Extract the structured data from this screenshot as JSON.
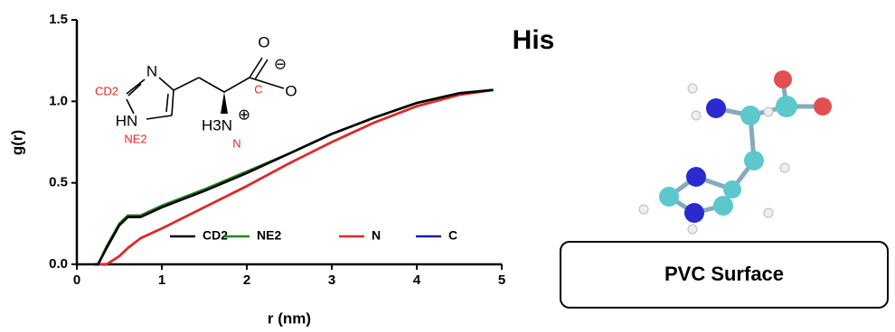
{
  "chart_data": {
    "type": "line",
    "x_label": "r (nm)",
    "y_label": "g(r)",
    "x": [
      0.2,
      0.25,
      0.35,
      0.5,
      0.6,
      0.75,
      1.0,
      1.5,
      2,
      2.5,
      3,
      3.5,
      4,
      4.5,
      4.9
    ],
    "series": [
      {
        "name": "CD2",
        "color": "#000000",
        "values": [
          0,
          0,
          0.1,
          0.24,
          0.29,
          0.29,
          0.35,
          0.45,
          0.56,
          0.68,
          0.8,
          0.9,
          0.99,
          1.05,
          1.07
        ]
      },
      {
        "name": "NE2",
        "color": "#1a8a1a",
        "values": [
          0,
          0,
          0.11,
          0.25,
          0.3,
          0.3,
          0.36,
          0.46,
          0.57,
          0.68,
          0.8,
          0.9,
          0.99,
          1.05,
          1.07
        ]
      },
      {
        "name": "N",
        "color": "#e8261f",
        "values": [
          0,
          0,
          0,
          0.05,
          0.1,
          0.16,
          0.22,
          0.35,
          0.48,
          0.62,
          0.75,
          0.87,
          0.97,
          1.04,
          1.07
        ]
      },
      {
        "name": "C",
        "color": "#1a1aa8",
        "values": [
          0,
          0,
          0,
          0.05,
          0.1,
          0.16,
          0.22,
          0.35,
          0.48,
          0.62,
          0.75,
          0.87,
          0.97,
          1.04,
          1.07
        ]
      }
    ],
    "xlim": [
      0,
      5
    ],
    "xticks": [
      0,
      1,
      2,
      3,
      4,
      5
    ],
    "ylim": [
      0,
      1.5
    ],
    "yticks": [
      {
        "value": 0,
        "label": "0.0"
      },
      0.5,
      {
        "value": 1,
        "label": "1.0"
      },
      1.5
    ],
    "grid": false
  },
  "structure": {
    "ring_n": "N",
    "cd2": "CD2",
    "hn": "HN",
    "ne2": "NE2",
    "amine": "H3N",
    "plus": "⊕",
    "amine_label": "N",
    "carbon_label": "C",
    "o_top": "O",
    "o_right": "O",
    "minus": "⊖"
  },
  "panel": {
    "title": "His",
    "surface": "PVC Surface"
  }
}
